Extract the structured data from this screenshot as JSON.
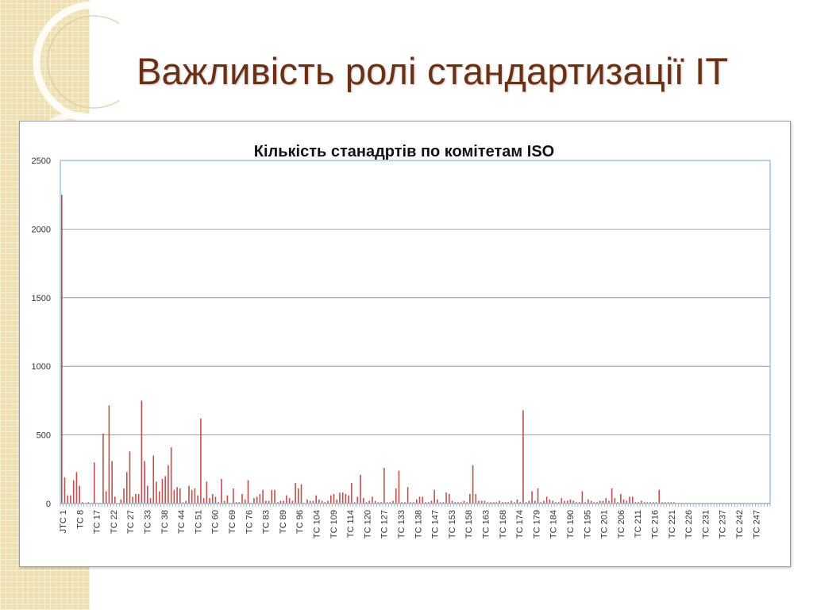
{
  "slide": {
    "title": "Важливість ролі стандартизації ІТ"
  },
  "colors": {
    "bar": "#c0504d",
    "plot_border": "#8fb3de",
    "grid": "#888888",
    "title": "#6b2f14",
    "strip": "#efe0b2"
  },
  "chart_data": {
    "type": "bar",
    "title": "Кількість станадртів по комітетам ISO",
    "xlabel": "",
    "ylabel": "",
    "ylim": [
      0,
      2500
    ],
    "yticks": [
      0,
      500,
      1000,
      1500,
      2000,
      2500
    ],
    "grid": true,
    "legend": "none",
    "x_tick_labels": [
      "JTC 1",
      "TC 8",
      "TC 17",
      "TC 22",
      "TC 27",
      "TC 33",
      "TC 38",
      "TC 44",
      "TC 51",
      "TC 60",
      "TC 69",
      "TC 76",
      "TC 83",
      "TC 89",
      "TC 96",
      "TC 104",
      "TC 109",
      "TC 114",
      "TC 120",
      "TC 127",
      "TC 133",
      "TC 138",
      "TC 147",
      "TC 153",
      "TC 158",
      "TC 163",
      "TC 168",
      "TC 174",
      "TC 179",
      "TC 184",
      "TC 190",
      "TC 195",
      "TC 201",
      "TC 206",
      "TC 211",
      "TC 216",
      "TC 221",
      "TC 226",
      "TC 231",
      "TC 237",
      "TC 242",
      "TC 247"
    ],
    "values": [
      2250,
      190,
      60,
      60,
      170,
      230,
      130,
      10,
      5,
      10,
      5,
      300,
      5,
      5,
      510,
      90,
      715,
      310,
      50,
      5,
      30,
      110,
      230,
      380,
      50,
      70,
      70,
      750,
      310,
      130,
      40,
      350,
      160,
      90,
      180,
      200,
      280,
      410,
      100,
      120,
      110,
      10,
      20,
      130,
      100,
      110,
      60,
      620,
      40,
      160,
      40,
      70,
      50,
      10,
      180,
      20,
      60,
      5,
      110,
      10,
      10,
      70,
      30,
      170,
      5,
      40,
      50,
      70,
      100,
      20,
      20,
      100,
      100,
      10,
      20,
      20,
      60,
      40,
      20,
      150,
      110,
      140,
      5,
      30,
      20,
      20,
      60,
      30,
      20,
      10,
      20,
      60,
      70,
      30,
      80,
      80,
      70,
      60,
      150,
      10,
      50,
      210,
      40,
      10,
      20,
      50,
      20,
      10,
      10,
      260,
      10,
      10,
      20,
      110,
      240,
      10,
      10,
      120,
      10,
      10,
      30,
      50,
      50,
      10,
      10,
      20,
      100,
      30,
      10,
      10,
      80,
      70,
      20,
      10,
      10,
      10,
      20,
      10,
      70,
      280,
      70,
      20,
      20,
      20,
      10,
      10,
      10,
      10,
      20,
      10,
      10,
      10,
      20,
      10,
      30,
      10,
      680,
      10,
      20,
      90,
      20,
      110,
      10,
      20,
      50,
      30,
      20,
      10,
      10,
      40,
      20,
      20,
      30,
      20,
      10,
      10,
      90,
      10,
      30,
      20,
      10,
      10,
      20,
      20,
      40,
      20,
      110,
      40,
      10,
      70,
      30,
      20,
      50,
      50,
      10,
      10,
      20,
      10,
      10,
      10,
      10,
      10,
      100,
      10,
      10,
      10,
      10,
      10,
      5,
      5,
      5,
      5,
      5,
      5,
      5,
      5,
      5,
      5,
      5,
      5,
      5,
      5,
      5,
      5,
      5,
      5,
      5,
      5,
      5,
      5,
      5,
      5,
      5,
      5,
      5,
      5,
      5,
      5,
      5,
      5
    ]
  }
}
